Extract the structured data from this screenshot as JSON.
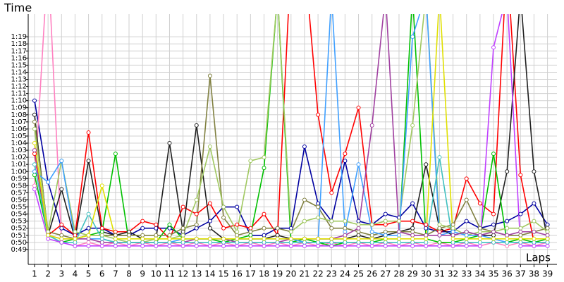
{
  "chart_data": {
    "type": "line",
    "ylabel": "Time",
    "xlabel": "Laps",
    "x": [
      1,
      2,
      3,
      4,
      5,
      6,
      7,
      8,
      9,
      10,
      11,
      12,
      13,
      14,
      15,
      16,
      17,
      18,
      19,
      20,
      21,
      22,
      23,
      24,
      25,
      26,
      27,
      28,
      29,
      30,
      31,
      32,
      33,
      34,
      35,
      36,
      37,
      38,
      39
    ],
    "xlim": [
      0.53,
      39.7
    ],
    "xticks": [
      1,
      2,
      3,
      4,
      5,
      6,
      7,
      8,
      9,
      10,
      11,
      12,
      13,
      14,
      15,
      16,
      17,
      18,
      19,
      20,
      21,
      22,
      23,
      24,
      25,
      26,
      27,
      28,
      29,
      30,
      31,
      32,
      33,
      34,
      35,
      36,
      37,
      38,
      39
    ],
    "ylim": [
      46.9,
      82.2
    ],
    "yticks": [
      {
        "value": 49,
        "label": "0:49"
      },
      {
        "value": 50,
        "label": "0:50"
      },
      {
        "value": 51,
        "label": "0:51"
      },
      {
        "value": 52,
        "label": "0:52"
      },
      {
        "value": 53,
        "label": "0:53"
      },
      {
        "value": 54,
        "label": "0:54"
      },
      {
        "value": 55,
        "label": "0:55"
      },
      {
        "value": 56,
        "label": "0:56"
      },
      {
        "value": 57,
        "label": "0:57"
      },
      {
        "value": 58,
        "label": "0:58"
      },
      {
        "value": 59,
        "label": "0:59"
      },
      {
        "value": 60,
        "label": "1:00"
      },
      {
        "value": 61,
        "label": "1:01"
      },
      {
        "value": 62,
        "label": "1:02"
      },
      {
        "value": 63,
        "label": "1:03"
      },
      {
        "value": 64,
        "label": "1:04"
      },
      {
        "value": 65,
        "label": "1:05"
      },
      {
        "value": 66,
        "label": "1:06"
      },
      {
        "value": 67,
        "label": "1:07"
      },
      {
        "value": 68,
        "label": "1:08"
      },
      {
        "value": 69,
        "label": "1:09"
      },
      {
        "value": 70,
        "label": "1:10"
      },
      {
        "value": 71,
        "label": "1:11"
      },
      {
        "value": 72,
        "label": "1:12"
      },
      {
        "value": 73,
        "label": "1:13"
      },
      {
        "value": 74,
        "label": "1:14"
      },
      {
        "value": 75,
        "label": "1:15"
      },
      {
        "value": 76,
        "label": "1:16"
      },
      {
        "value": 77,
        "label": "1:17"
      },
      {
        "value": 78,
        "label": "1:18"
      },
      {
        "value": 79,
        "label": "1:19"
      }
    ],
    "grid": true,
    "series": [
      {
        "color": "#0000a0",
        "values": [
          70,
          58.5,
          52,
          51,
          52,
          52,
          51,
          51,
          52,
          52,
          52,
          51,
          52,
          53,
          55,
          55,
          51,
          51,
          52,
          52,
          63.5,
          55.5,
          53,
          61.5,
          53,
          52.5,
          54,
          53.5,
          55.5,
          52,
          51.5,
          51.5,
          53,
          52,
          52.5,
          53,
          54,
          55.5,
          52.5
        ]
      },
      {
        "color": "#ff0000",
        "values": [
          62.5,
          51,
          52.5,
          51,
          65.5,
          52,
          51.5,
          51.5,
          53,
          52.5,
          50.5,
          55,
          54,
          55.5,
          52,
          52.5,
          52,
          54,
          51,
          90,
          90,
          68,
          57,
          62.5,
          69,
          52.5,
          52.5,
          53,
          53,
          52.5,
          51.5,
          52,
          59,
          55.5,
          54,
          90,
          59.5,
          50,
          50
        ]
      },
      {
        "color": "#ff80c0",
        "values": [
          58,
          90,
          50,
          49.5,
          50,
          49.5,
          50,
          49.5,
          50,
          49.5,
          50,
          49.5,
          50,
          49.5,
          50,
          49.5,
          50,
          49.5,
          50,
          49.5,
          50,
          49.5,
          50,
          49.5,
          50,
          49.5,
          50,
          49.5,
          50,
          49.5,
          50,
          49.5,
          50,
          49.5,
          50,
          49.5,
          50,
          49.5,
          50
        ]
      },
      {
        "color": "#202020",
        "values": [
          68,
          51,
          57.5,
          50.5,
          61.5,
          51.5,
          51,
          51.5,
          50.5,
          50.5,
          64,
          51.5,
          66.5,
          52,
          50.5,
          50.5,
          50.5,
          50.5,
          51,
          50.5,
          50.5,
          50.5,
          50.5,
          50.5,
          51,
          50.5,
          51,
          51.5,
          52,
          61,
          52,
          51,
          51.5,
          51,
          51,
          60,
          85,
          60,
          50.5
        ]
      },
      {
        "color": "#00c000",
        "values": [
          59.5,
          51,
          50,
          50.5,
          51,
          51.5,
          62.5,
          50,
          50,
          50,
          52.5,
          50.5,
          50.5,
          50.5,
          50,
          50.5,
          51,
          60.5,
          85,
          50,
          50.5,
          50,
          49.5,
          50,
          50,
          50,
          50.5,
          50.5,
          85,
          50.5,
          50,
          50,
          50.5,
          51,
          62.5,
          50,
          50.5,
          50,
          50.5
        ]
      },
      {
        "color": "#808040",
        "values": [
          67,
          51.5,
          51,
          50.5,
          51,
          51,
          51,
          51,
          51,
          51,
          51,
          52,
          52.5,
          73.5,
          53.5,
          51,
          51.5,
          52,
          52,
          51.5,
          56,
          55,
          52,
          52,
          51.5,
          51,
          51.5,
          51.5,
          51.5,
          51,
          52,
          52.5,
          56,
          52,
          51.5,
          51,
          51,
          51.5,
          52
        ]
      },
      {
        "color": "#a0c860",
        "values": [
          66,
          51.5,
          61.5,
          51.5,
          51,
          51,
          50.5,
          50,
          50,
          50.5,
          50.5,
          51,
          56,
          63.5,
          55,
          51.5,
          61.5,
          62,
          85,
          51.5,
          53,
          53.5,
          53,
          53,
          52.5,
          52.5,
          53,
          53,
          66.5,
          85,
          52.5,
          52,
          51,
          51.5,
          51.5,
          52,
          52,
          53,
          51.5
        ]
      },
      {
        "color": "#40a0ff",
        "values": [
          60,
          58.5,
          61.5,
          50.5,
          50.5,
          50.5,
          50,
          50,
          50,
          50,
          50,
          50.5,
          50.5,
          50.5,
          50.5,
          50.5,
          50.5,
          50.5,
          50.5,
          50.5,
          50,
          50,
          85,
          51.5,
          61,
          51.5,
          51,
          51,
          79,
          85,
          51,
          51.5,
          51,
          51,
          50.5,
          50,
          50,
          50,
          50
        ]
      },
      {
        "color": "#a040a0",
        "values": [
          63,
          51,
          50.5,
          50.5,
          50.5,
          50,
          50,
          50,
          50,
          50,
          50,
          50,
          50.5,
          50.5,
          50.5,
          50,
          50,
          50,
          50,
          50.5,
          50.5,
          50.5,
          50.5,
          51,
          52,
          66.5,
          85,
          51.5,
          51,
          51,
          51,
          51,
          51.5,
          51,
          51.5,
          51,
          51.5,
          51.5,
          51
        ]
      },
      {
        "color": "#40c0c0",
        "values": [
          61,
          51,
          50,
          50,
          54,
          50.5,
          50,
          50,
          50,
          50,
          50,
          50,
          50,
          50,
          50,
          50,
          50,
          50,
          50,
          50,
          50,
          50,
          50,
          50,
          50,
          50,
          50,
          50,
          50,
          50,
          62,
          50,
          50,
          50,
          50,
          50,
          50,
          50,
          50
        ]
      },
      {
        "color": "#e0e000",
        "values": [
          64,
          51,
          50.5,
          50.5,
          51,
          58,
          50.5,
          50.5,
          50.5,
          50.5,
          50.5,
          50.5,
          50.5,
          50.5,
          50.5,
          50.5,
          50.5,
          50.5,
          50.5,
          50.5,
          50.5,
          50.5,
          50.5,
          50.5,
          50.5,
          50.5,
          50.5,
          50.5,
          50.5,
          50.5,
          85,
          50.5,
          50.5,
          50.5,
          50.5,
          50.5,
          50.5,
          50.5,
          50.5
        ]
      },
      {
        "color": "#c040ff",
        "values": [
          57.5,
          50.5,
          50,
          49.5,
          49.5,
          49.5,
          49.5,
          49.5,
          49.5,
          49.5,
          49.5,
          49.5,
          49.5,
          49.5,
          49.5,
          49.5,
          49.5,
          49.5,
          49.5,
          49.5,
          49.5,
          49.5,
          49.5,
          49.5,
          49.5,
          49.5,
          49.5,
          49.5,
          49.5,
          49.5,
          49.5,
          49.5,
          49.5,
          49.5,
          77.5,
          85,
          49.5,
          49.5,
          49.5
        ]
      }
    ]
  }
}
